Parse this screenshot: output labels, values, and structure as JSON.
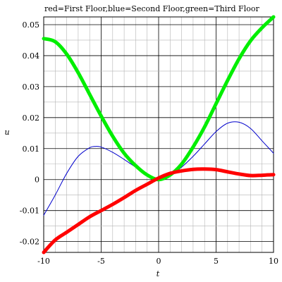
{
  "chart_data": {
    "type": "line",
    "title": "red=First Floor,blue=Second Floor,green=Third Floor",
    "xlabel": "t",
    "ylabel": "u",
    "xlim": [
      -10,
      10
    ],
    "ylim": [
      -0.0235,
      0.0525
    ],
    "grid": true,
    "xticks": [
      -10,
      -5,
      0,
      5,
      10
    ],
    "xtick_labels": [
      "-10",
      "-5",
      "0",
      "5",
      "10"
    ],
    "yticks": [
      -0.02,
      -0.01,
      0,
      0.01,
      0.02,
      0.03,
      0.04,
      0.05
    ],
    "ytick_labels": [
      "-0.02",
      "-0.01",
      "0",
      "0.01",
      "0.02",
      "0.03",
      "0.04",
      "0.05"
    ],
    "series": [
      {
        "name": "First Floor",
        "color": "#ff0000",
        "x": [
          -10,
          -9,
          -8,
          -7,
          -6,
          -5,
          -4,
          -3,
          -2,
          -1,
          0,
          1,
          2,
          3,
          4,
          5,
          6,
          7,
          8,
          9,
          10
        ],
        "y": [
          -0.0235,
          -0.0195,
          -0.017,
          -0.0145,
          -0.012,
          -0.01,
          -0.008,
          -0.0058,
          -0.0035,
          -0.0015,
          0.0005,
          0.002,
          0.0028,
          0.0033,
          0.0034,
          0.0032,
          0.0025,
          0.0018,
          0.0013,
          0.0014,
          0.0016
        ]
      },
      {
        "name": "Second Floor",
        "color": "#0000cc",
        "x": [
          -10,
          -9,
          -8,
          -7,
          -6,
          -5.5,
          -5,
          -4,
          -3,
          -2,
          -1,
          0,
          1,
          2,
          3,
          4,
          5,
          6,
          7,
          8,
          9,
          10
        ],
        "y": [
          -0.0115,
          -0.005,
          0.002,
          0.0075,
          0.0103,
          0.0107,
          0.0105,
          0.0088,
          0.0065,
          0.004,
          0.0015,
          0.0,
          0.0012,
          0.004,
          0.0075,
          0.0115,
          0.0155,
          0.0182,
          0.0185,
          0.0165,
          0.0125,
          0.0085
        ]
      },
      {
        "name": "Third Floor",
        "color": "#00ee00",
        "x": [
          -10,
          -9,
          -8,
          -7,
          -6,
          -5,
          -4,
          -3,
          -2,
          -1,
          0,
          1,
          2,
          3,
          4,
          5,
          6,
          7,
          8,
          9,
          10
        ],
        "y": [
          0.0455,
          0.0445,
          0.0405,
          0.0345,
          0.0275,
          0.0205,
          0.014,
          0.0085,
          0.0045,
          0.0015,
          0.0,
          0.0015,
          0.005,
          0.0105,
          0.017,
          0.0245,
          0.032,
          0.039,
          0.0448,
          0.049,
          0.0525
        ]
      }
    ]
  }
}
